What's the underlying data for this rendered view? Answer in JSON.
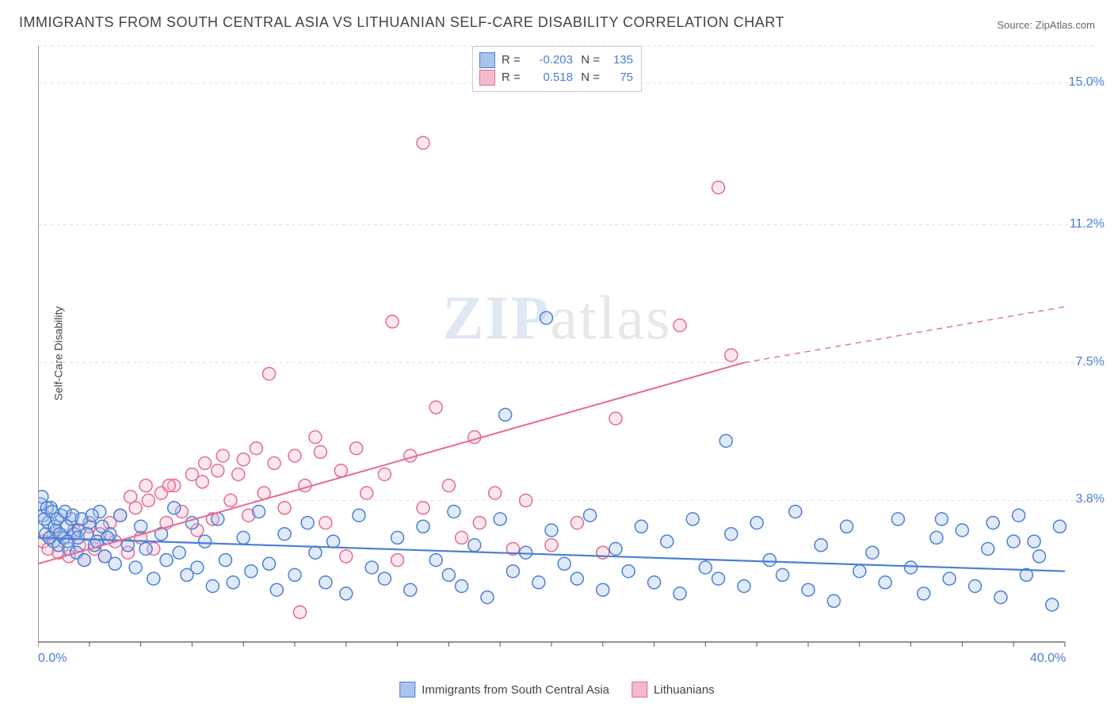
{
  "title": "IMMIGRANTS FROM SOUTH CENTRAL ASIA VS LITHUANIAN SELF-CARE DISABILITY CORRELATION CHART",
  "source": "Source: ZipAtlas.com",
  "ylabel": "Self-Care Disability",
  "watermark_prefix": "ZIP",
  "watermark_suffix": "atlas",
  "chart": {
    "type": "scatter-correlation",
    "xlim": [
      0.0,
      40.0
    ],
    "ylim": [
      0.0,
      16.0
    ],
    "xticks_count": 21,
    "x_minmax_labels": [
      "0.0%",
      "40.0%"
    ],
    "yticks": [
      3.8,
      7.5,
      11.2,
      15.0
    ],
    "ytick_labels": [
      "3.8%",
      "7.5%",
      "11.2%",
      "15.0%"
    ],
    "grid_color": "#e0e0e0",
    "axis_color": "#555555",
    "background_color": "#ffffff",
    "marker_radius": 8,
    "marker_fill_opacity": 0.35,
    "marker_stroke_width": 1.5,
    "series": [
      {
        "name": "Immigrants from South Central Asia",
        "color_stroke": "#4a7fd6",
        "color_fill": "#a9c4ec",
        "R": "-0.203",
        "N": "135",
        "trend": {
          "x1": 0.0,
          "y1": 2.8,
          "x2": 40.0,
          "y2": 1.9,
          "style": "solid",
          "width": 2.2
        },
        "points": [
          [
            0.2,
            3.4
          ],
          [
            0.3,
            2.9
          ],
          [
            0.4,
            3.2
          ],
          [
            0.5,
            3.6
          ],
          [
            0.6,
            2.7
          ],
          [
            0.7,
            3.0
          ],
          [
            0.8,
            2.6
          ],
          [
            0.9,
            3.4
          ],
          [
            1.0,
            2.8
          ],
          [
            1.1,
            3.1
          ],
          [
            1.2,
            2.5
          ],
          [
            1.3,
            3.3
          ],
          [
            1.4,
            2.9
          ],
          [
            1.5,
            2.4
          ],
          [
            1.6,
            3.0
          ],
          [
            1.8,
            2.2
          ],
          [
            2.0,
            3.2
          ],
          [
            2.2,
            2.6
          ],
          [
            2.4,
            3.5
          ],
          [
            2.6,
            2.3
          ],
          [
            2.8,
            2.9
          ],
          [
            3.0,
            2.1
          ],
          [
            3.2,
            3.4
          ],
          [
            3.5,
            2.6
          ],
          [
            3.8,
            2.0
          ],
          [
            4.0,
            3.1
          ],
          [
            4.2,
            2.5
          ],
          [
            4.5,
            1.7
          ],
          [
            4.8,
            2.9
          ],
          [
            5.0,
            2.2
          ],
          [
            5.3,
            3.6
          ],
          [
            5.5,
            2.4
          ],
          [
            5.8,
            1.8
          ],
          [
            6.0,
            3.2
          ],
          [
            6.2,
            2.0
          ],
          [
            6.5,
            2.7
          ],
          [
            6.8,
            1.5
          ],
          [
            7.0,
            3.3
          ],
          [
            7.3,
            2.2
          ],
          [
            7.6,
            1.6
          ],
          [
            8.0,
            2.8
          ],
          [
            8.3,
            1.9
          ],
          [
            8.6,
            3.5
          ],
          [
            9.0,
            2.1
          ],
          [
            9.3,
            1.4
          ],
          [
            9.6,
            2.9
          ],
          [
            10.0,
            1.8
          ],
          [
            10.5,
            3.2
          ],
          [
            10.8,
            2.4
          ],
          [
            11.2,
            1.6
          ],
          [
            11.5,
            2.7
          ],
          [
            12.0,
            1.3
          ],
          [
            12.5,
            3.4
          ],
          [
            13.0,
            2.0
          ],
          [
            13.5,
            1.7
          ],
          [
            14.0,
            2.8
          ],
          [
            14.5,
            1.4
          ],
          [
            15.0,
            3.1
          ],
          [
            15.5,
            2.2
          ],
          [
            16.0,
            1.8
          ],
          [
            16.2,
            3.5
          ],
          [
            16.5,
            1.5
          ],
          [
            17.0,
            2.6
          ],
          [
            17.5,
            1.2
          ],
          [
            18.0,
            3.3
          ],
          [
            18.2,
            6.1
          ],
          [
            18.5,
            1.9
          ],
          [
            19.0,
            2.4
          ],
          [
            19.5,
            1.6
          ],
          [
            19.8,
            8.7
          ],
          [
            20.0,
            3.0
          ],
          [
            20.5,
            2.1
          ],
          [
            21.0,
            1.7
          ],
          [
            21.5,
            3.4
          ],
          [
            22.0,
            1.4
          ],
          [
            22.5,
            2.5
          ],
          [
            23.0,
            1.9
          ],
          [
            23.5,
            3.1
          ],
          [
            24.0,
            1.6
          ],
          [
            24.5,
            2.7
          ],
          [
            25.0,
            1.3
          ],
          [
            25.5,
            3.3
          ],
          [
            26.0,
            2.0
          ],
          [
            26.5,
            1.7
          ],
          [
            26.8,
            5.4
          ],
          [
            27.0,
            2.9
          ],
          [
            27.5,
            1.5
          ],
          [
            28.0,
            3.2
          ],
          [
            28.5,
            2.2
          ],
          [
            29.0,
            1.8
          ],
          [
            29.5,
            3.5
          ],
          [
            30.0,
            1.4
          ],
          [
            30.5,
            2.6
          ],
          [
            31.0,
            1.1
          ],
          [
            31.5,
            3.1
          ],
          [
            32.0,
            1.9
          ],
          [
            32.5,
            2.4
          ],
          [
            33.0,
            1.6
          ],
          [
            33.5,
            3.3
          ],
          [
            34.0,
            2.0
          ],
          [
            34.5,
            1.3
          ],
          [
            35.0,
            2.8
          ],
          [
            35.2,
            3.3
          ],
          [
            35.5,
            1.7
          ],
          [
            36.0,
            3.0
          ],
          [
            36.5,
            1.5
          ],
          [
            37.0,
            2.5
          ],
          [
            37.2,
            3.2
          ],
          [
            37.5,
            1.2
          ],
          [
            38.0,
            2.7
          ],
          [
            38.2,
            3.4
          ],
          [
            38.5,
            1.8
          ],
          [
            38.8,
            2.7
          ],
          [
            39.0,
            2.3
          ],
          [
            39.5,
            1.0
          ],
          [
            39.8,
            3.1
          ],
          [
            0.1,
            3.7
          ],
          [
            0.15,
            3.9
          ],
          [
            0.25,
            3.3
          ],
          [
            0.35,
            3.6
          ],
          [
            0.45,
            2.8
          ],
          [
            0.55,
            3.5
          ],
          [
            0.65,
            3.1
          ],
          [
            0.75,
            3.3
          ],
          [
            0.85,
            2.9
          ],
          [
            1.05,
            3.5
          ],
          [
            1.15,
            2.7
          ],
          [
            1.35,
            3.4
          ],
          [
            1.55,
            2.8
          ],
          [
            1.7,
            3.3
          ],
          [
            1.9,
            2.9
          ],
          [
            2.1,
            3.4
          ],
          [
            2.3,
            2.7
          ],
          [
            2.5,
            3.1
          ],
          [
            2.7,
            2.8
          ]
        ]
      },
      {
        "name": "Lithuanians",
        "color_stroke": "#e66a91",
        "color_fill": "#f5b9ce",
        "R": "0.518",
        "N": "75",
        "trend": {
          "x1": 0.0,
          "y1": 2.1,
          "x2": 27.5,
          "y2": 7.5,
          "style": "solid",
          "width": 2.0
        },
        "trend_ext": {
          "x1": 27.5,
          "y1": 7.5,
          "x2": 40.0,
          "y2": 9.0,
          "style": "dashed",
          "width": 1.4
        },
        "points": [
          [
            0.2,
            2.7
          ],
          [
            0.4,
            2.5
          ],
          [
            0.6,
            2.9
          ],
          [
            0.8,
            2.4
          ],
          [
            1.0,
            2.8
          ],
          [
            1.2,
            2.3
          ],
          [
            1.4,
            3.0
          ],
          [
            1.6,
            2.6
          ],
          [
            1.8,
            2.2
          ],
          [
            2.0,
            3.1
          ],
          [
            2.2,
            2.5
          ],
          [
            2.4,
            2.9
          ],
          [
            2.6,
            2.3
          ],
          [
            2.8,
            3.2
          ],
          [
            3.0,
            2.7
          ],
          [
            3.2,
            3.4
          ],
          [
            3.5,
            2.4
          ],
          [
            3.8,
            3.6
          ],
          [
            4.0,
            2.8
          ],
          [
            4.3,
            3.8
          ],
          [
            4.5,
            2.5
          ],
          [
            4.8,
            4.0
          ],
          [
            5.0,
            3.2
          ],
          [
            5.3,
            4.2
          ],
          [
            5.6,
            3.5
          ],
          [
            6.0,
            4.5
          ],
          [
            6.2,
            3.0
          ],
          [
            6.5,
            4.8
          ],
          [
            6.8,
            3.3
          ],
          [
            7.2,
            5.0
          ],
          [
            7.5,
            3.8
          ],
          [
            7.8,
            4.5
          ],
          [
            8.2,
            3.4
          ],
          [
            8.5,
            5.2
          ],
          [
            8.8,
            4.0
          ],
          [
            9.2,
            4.8
          ],
          [
            9.6,
            3.6
          ],
          [
            10.0,
            5.0
          ],
          [
            10.4,
            4.2
          ],
          [
            10.8,
            5.5
          ],
          [
            11.2,
            3.2
          ],
          [
            11.8,
            4.6
          ],
          [
            12.0,
            2.3
          ],
          [
            12.4,
            5.2
          ],
          [
            12.8,
            4.0
          ],
          [
            13.5,
            4.5
          ],
          [
            13.8,
            8.6
          ],
          [
            14.0,
            2.2
          ],
          [
            14.5,
            5.0
          ],
          [
            15.0,
            3.6
          ],
          [
            15.0,
            13.4
          ],
          [
            15.5,
            6.3
          ],
          [
            16.0,
            4.2
          ],
          [
            16.5,
            2.8
          ],
          [
            17.0,
            5.5
          ],
          [
            17.2,
            3.2
          ],
          [
            17.8,
            4.0
          ],
          [
            18.5,
            2.5
          ],
          [
            19.0,
            3.8
          ],
          [
            20.0,
            2.6
          ],
          [
            21.0,
            3.2
          ],
          [
            22.0,
            2.4
          ],
          [
            22.5,
            6.0
          ],
          [
            25.0,
            8.5
          ],
          [
            26.5,
            12.2
          ],
          [
            27.0,
            7.7
          ],
          [
            9.0,
            7.2
          ],
          [
            11.0,
            5.1
          ],
          [
            10.2,
            0.8
          ],
          [
            6.4,
            4.3
          ],
          [
            5.1,
            4.2
          ],
          [
            7.0,
            4.6
          ],
          [
            8.0,
            4.9
          ],
          [
            4.2,
            4.2
          ],
          [
            3.6,
            3.9
          ]
        ]
      }
    ]
  },
  "bottom_legend": [
    {
      "label": "Immigrants from South Central Asia",
      "fill": "#a9c4ec",
      "stroke": "#4a7fd6"
    },
    {
      "label": "Lithuanians",
      "fill": "#f5b9ce",
      "stroke": "#e66a91"
    }
  ]
}
